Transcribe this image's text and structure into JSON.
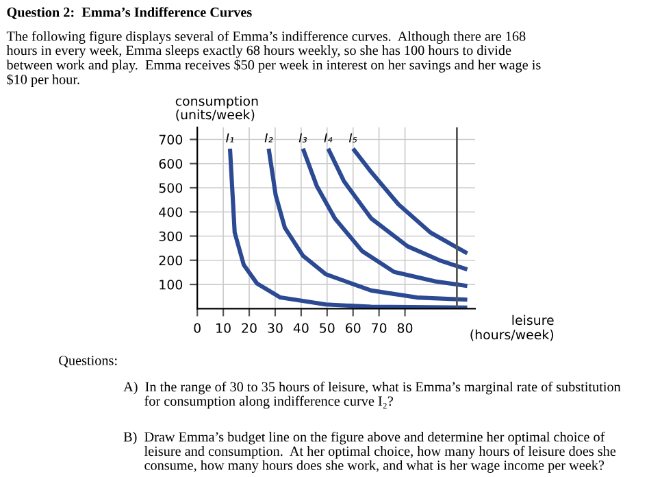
{
  "chart_data": {
    "type": "line",
    "title": "Question 2:  Emma’s Indifference Curves",
    "subtitle": "The following figure displays several of Emma’s indifference curves.  Although there are 168\nhours in every week, Emma sleeps exactly 68 hours weekly, so she has 100 hours to divide\nbetween work and play.  Emma receives $50 per week in interest on her savings and her wage is\n$10 per hour.",
    "xlabel": "leisure\n(hours/week)",
    "ylabel": "consumption\n(units/week)",
    "series": [
      {
        "name": "I₁",
        "color": "#2b4a93",
        "x": [
          12.6,
          14.4,
          17.9,
          23,
          32,
          49.5,
          67,
          104
        ],
        "values": [
          662,
          315,
          181,
          104,
          46,
          17,
          8,
          4
        ]
      },
      {
        "name": "I₂",
        "color": "#2b4a93",
        "x": [
          27.5,
          30.2,
          33.7,
          40.7,
          49.5,
          67,
          84.6,
          104
        ],
        "values": [
          662,
          469,
          335,
          219,
          142,
          75,
          46,
          37
        ]
      },
      {
        "name": "I₃",
        "color": "#2b4a93",
        "x": [
          40.7,
          46,
          53,
          63.5,
          75.8,
          91.6,
          104
        ],
        "values": [
          662,
          508,
          373,
          238,
          152,
          113,
          94
        ]
      },
      {
        "name": "I₄",
        "color": "#2b4a93",
        "x": [
          50.4,
          56.5,
          67,
          81,
          93.3,
          104
        ],
        "values": [
          662,
          527,
          373,
          258,
          200,
          162
        ]
      },
      {
        "name": "I₅",
        "color": "#2b4a93",
        "x": [
          60,
          67,
          77.5,
          89.8,
          104
        ],
        "values": [
          662,
          565,
          431,
          315,
          229
        ]
      }
    ],
    "xlim": [
      0,
      107
    ],
    "ylim": [
      0,
      750
    ],
    "xticks": [
      0,
      10,
      20,
      30,
      40,
      50,
      60,
      70,
      80
    ],
    "yticks": [
      100,
      200,
      300,
      400,
      500,
      600,
      700
    ],
    "ref_lines": [
      {
        "axis": "x",
        "value": 100,
        "color": "#555555"
      }
    ],
    "grid": true,
    "legend": false,
    "annotations": [
      "Questions:",
      "A)  In the range of 30 to 35 hours of leisure, what is Emma’s marginal rate of substitution\n      for consumption along indifference curve I₂?",
      "B)  Draw Emma’s budget line on the figure above and determine her optimal choice of\n      leisure and consumption.  At her optimal choice, how many hours of leisure does she\n      consume, how many hours does she work, and what is her wage income per week?"
    ]
  }
}
